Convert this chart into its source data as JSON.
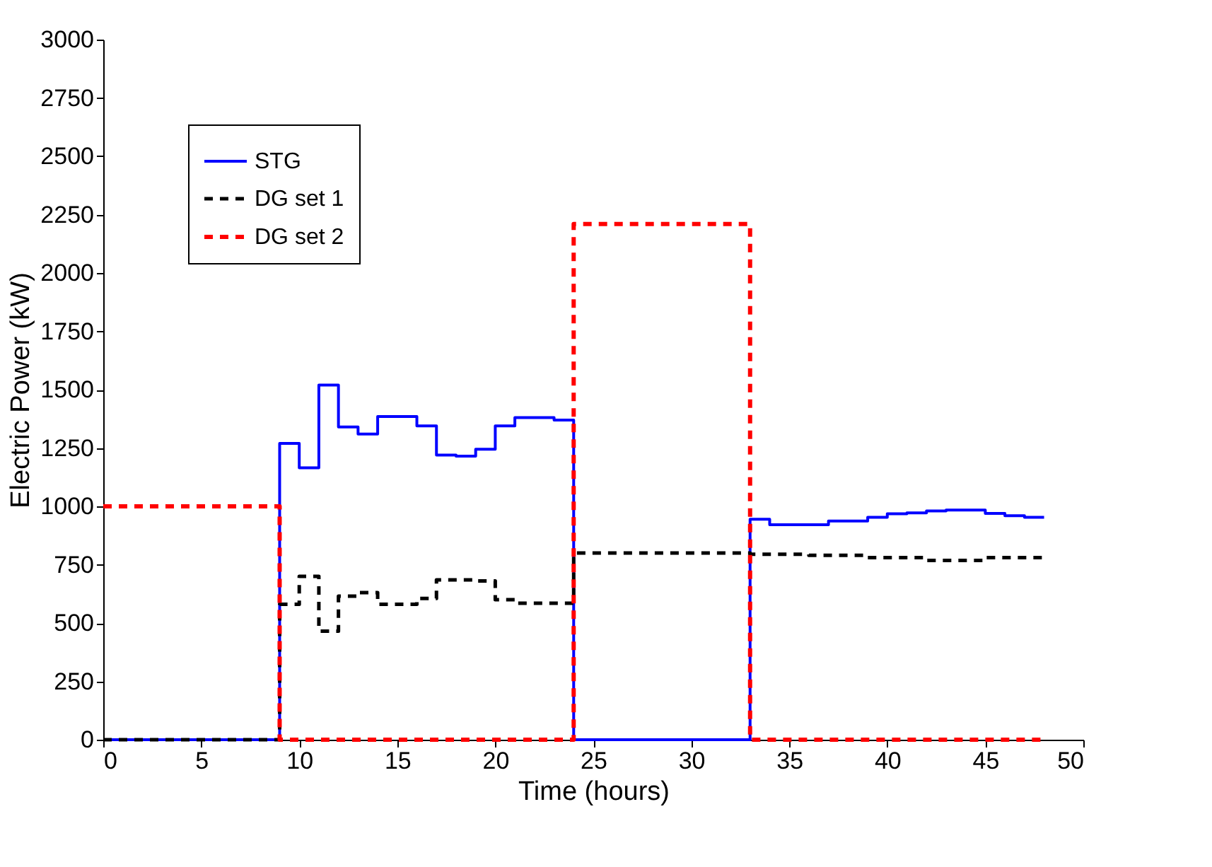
{
  "chart_data": {
    "type": "step",
    "xlabel": "Time (hours)",
    "ylabel": "Electric Power (kW)",
    "xlim": [
      0,
      50
    ],
    "xticks": [
      0,
      5,
      10,
      15,
      20,
      25,
      30,
      35,
      40,
      45,
      50
    ],
    "ylim": [
      0,
      3000
    ],
    "yticks": [
      0,
      250,
      500,
      750,
      1000,
      1250,
      1500,
      1750,
      2000,
      2250,
      2500,
      2750,
      3000
    ],
    "grid": false,
    "legend": "top left",
    "marker": "none",
    "series": [
      {
        "name": "STG",
        "color": "#0000ff",
        "line_style": "solid",
        "x": [
          0,
          9,
          10,
          11,
          12,
          13,
          14,
          16,
          17,
          18,
          19,
          20,
          21,
          23,
          24,
          33,
          34,
          37,
          39,
          40,
          41,
          42,
          43,
          45,
          46,
          47,
          48
        ],
        "values": [
          0,
          1270,
          1165,
          1520,
          1340,
          1310,
          1385,
          1345,
          1220,
          1215,
          1245,
          1345,
          1380,
          1370,
          0,
          945,
          921,
          937,
          953,
          968,
          972,
          980,
          984,
          970,
          960,
          953,
          953
        ]
      },
      {
        "name": "DG set 1",
        "color": "#000000",
        "line_style": "dashed",
        "x": [
          0,
          9,
          10,
          11,
          12,
          13,
          14,
          16,
          17,
          19,
          20,
          21,
          24,
          33,
          36,
          39,
          42,
          45,
          48
        ],
        "values": [
          0,
          580,
          700,
          465,
          615,
          630,
          580,
          605,
          685,
          680,
          600,
          585,
          800,
          795,
          790,
          780,
          768,
          780,
          780
        ]
      },
      {
        "name": "DG set 2",
        "color": "#ff0000",
        "line_style": "dashed",
        "x": [
          0,
          9,
          24,
          33,
          48
        ],
        "values": [
          1000,
          0,
          2210,
          0,
          0
        ]
      }
    ]
  }
}
